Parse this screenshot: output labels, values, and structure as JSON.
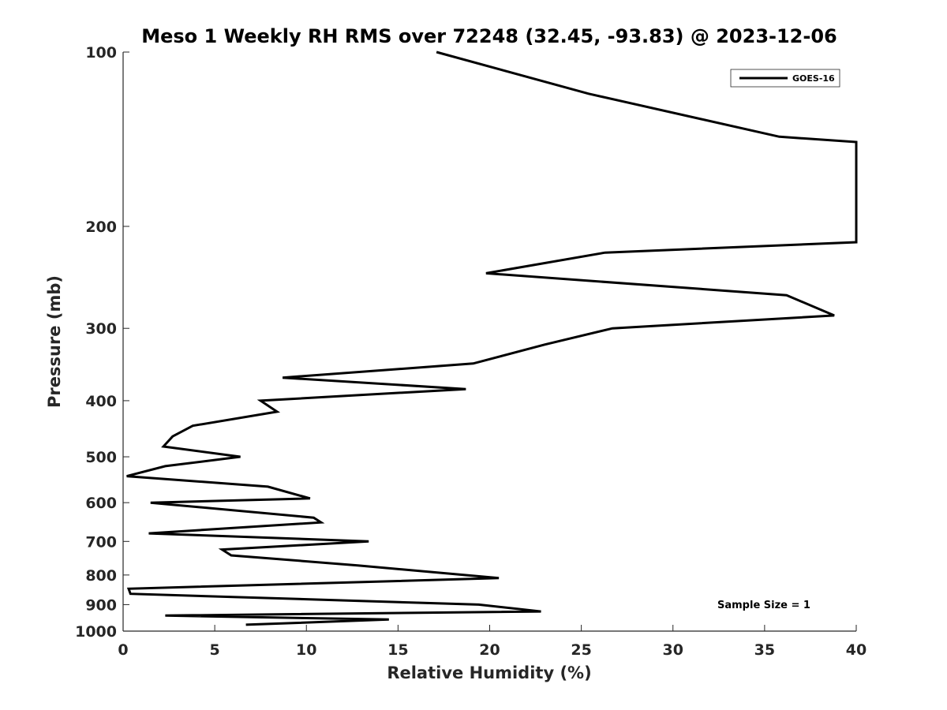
{
  "chart_data": {
    "type": "line",
    "title": "Meso 1 Weekly RH RMS over 72248 (32.45, -93.83) @ 2023-12-06",
    "xlabel": "Relative Humidity (%)",
    "ylabel": "Pressure (mb)",
    "xlim": [
      0,
      40
    ],
    "ylim": [
      100,
      1000
    ],
    "y_scale": "log",
    "y_reversed": true,
    "x_ticks": [
      0,
      5,
      10,
      15,
      20,
      25,
      30,
      35,
      40
    ],
    "y_ticks": [
      100,
      200,
      300,
      400,
      500,
      600,
      700,
      800,
      900,
      1000
    ],
    "grid": false,
    "legend_position": "top-right",
    "series": [
      {
        "name": "GOES-16",
        "color": "#000000",
        "points": [
          {
            "rh": 6.7,
            "p": 975
          },
          {
            "rh": 14.5,
            "p": 955
          },
          {
            "rh": 2.3,
            "p": 940
          },
          {
            "rh": 22.8,
            "p": 925
          },
          {
            "rh": 19.4,
            "p": 900
          },
          {
            "rh": 0.4,
            "p": 862
          },
          {
            "rh": 0.3,
            "p": 845
          },
          {
            "rh": 20.5,
            "p": 810
          },
          {
            "rh": 12.8,
            "p": 770
          },
          {
            "rh": 5.9,
            "p": 740
          },
          {
            "rh": 5.4,
            "p": 723
          },
          {
            "rh": 13.4,
            "p": 700
          },
          {
            "rh": 1.4,
            "p": 678
          },
          {
            "rh": 10.8,
            "p": 649
          },
          {
            "rh": 10.4,
            "p": 637
          },
          {
            "rh": 1.5,
            "p": 600
          },
          {
            "rh": 10.2,
            "p": 590
          },
          {
            "rh": 7.9,
            "p": 563
          },
          {
            "rh": 0.2,
            "p": 540
          },
          {
            "rh": 2.3,
            "p": 519
          },
          {
            "rh": 6.4,
            "p": 500
          },
          {
            "rh": 2.2,
            "p": 480
          },
          {
            "rh": 2.7,
            "p": 461
          },
          {
            "rh": 3.8,
            "p": 442
          },
          {
            "rh": 8.4,
            "p": 418
          },
          {
            "rh": 7.5,
            "p": 400
          },
          {
            "rh": 18.7,
            "p": 382
          },
          {
            "rh": 8.7,
            "p": 365
          },
          {
            "rh": 19.1,
            "p": 345
          },
          {
            "rh": 23.0,
            "p": 320
          },
          {
            "rh": 26.7,
            "p": 300
          },
          {
            "rh": 38.8,
            "p": 285
          },
          {
            "rh": 36.2,
            "p": 263
          },
          {
            "rh": 19.8,
            "p": 241
          },
          {
            "rh": 26.3,
            "p": 222
          },
          {
            "rh": 40.0,
            "p": 213
          },
          {
            "rh": 40.0,
            "p": 143
          },
          {
            "rh": 35.8,
            "p": 140
          },
          {
            "rh": 25.4,
            "p": 118
          },
          {
            "rh": 17.1,
            "p": 100
          }
        ]
      }
    ],
    "annotation": "Sample Size = 1"
  }
}
